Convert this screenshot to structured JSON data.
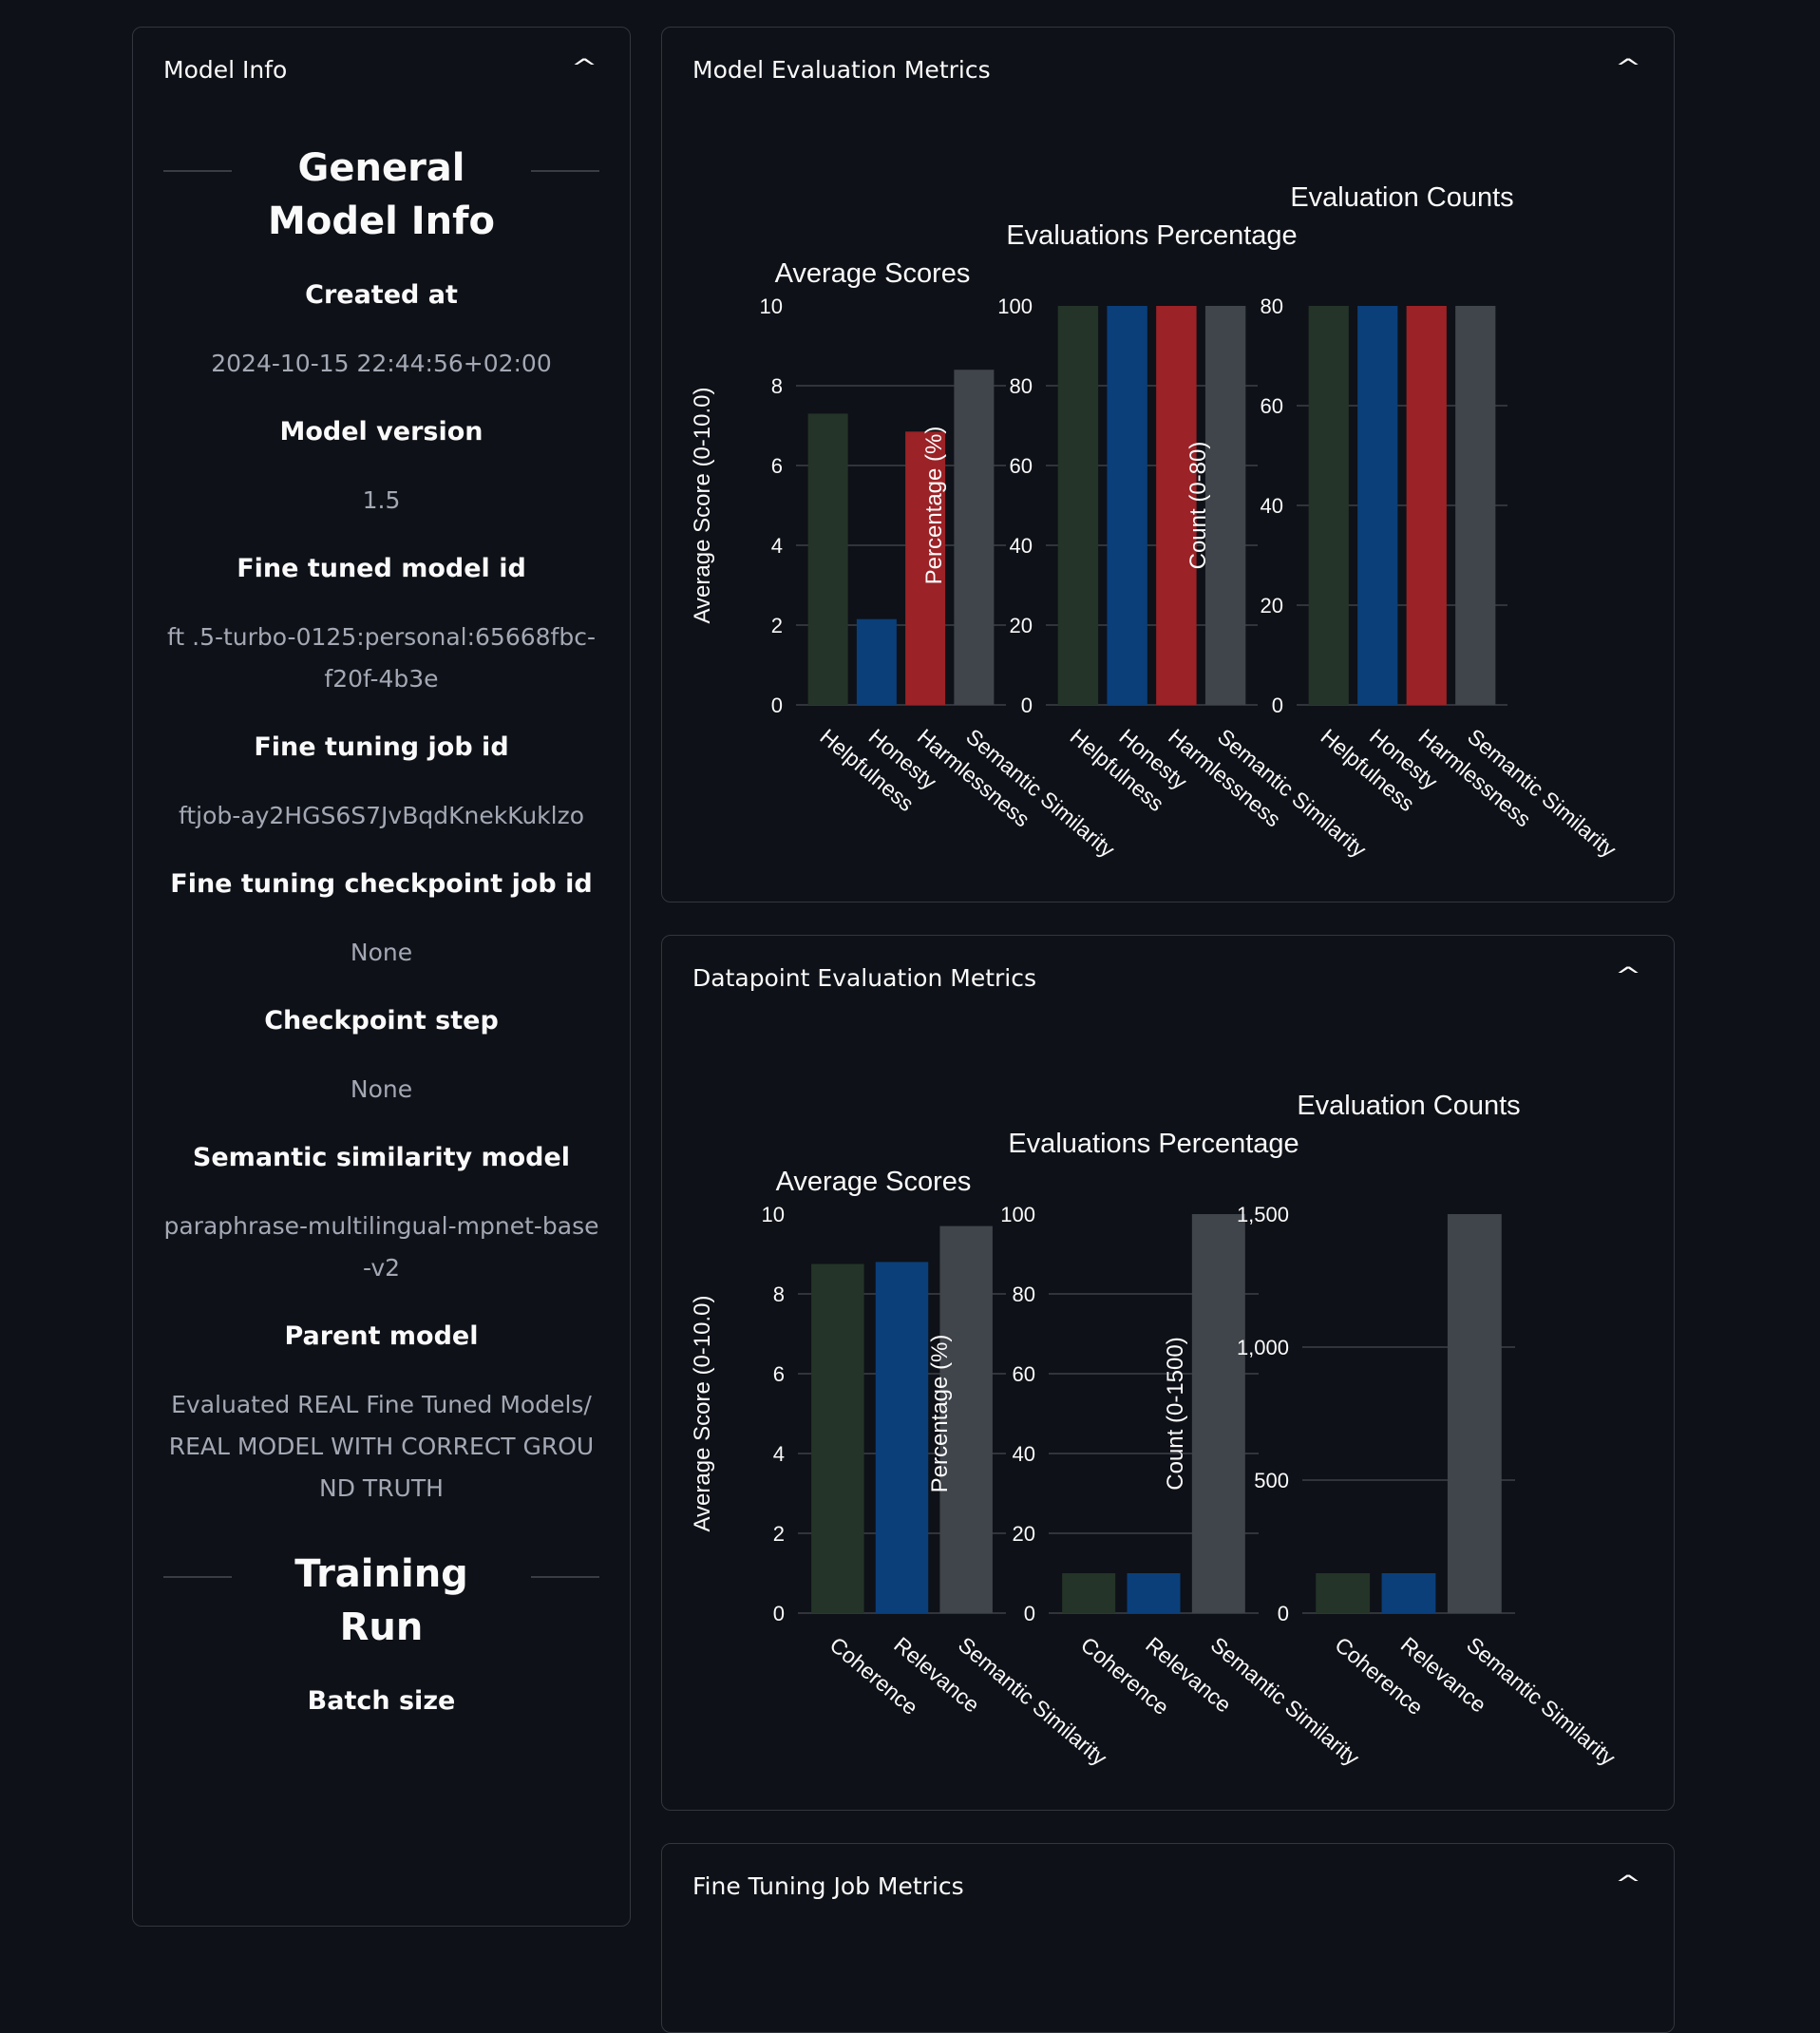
{
  "model_info": {
    "header": "Model Info",
    "section1": "General Model Info",
    "fields": [
      {
        "label": "Created at",
        "value": "2024-10-15 22:44:56+02:00"
      },
      {
        "label": "Model version",
        "value": "1.5"
      },
      {
        "label": "Fine tuned model id",
        "value": "ft .5-turbo-0125:personal:65668fbc-f20f-4b3e"
      },
      {
        "label": "Fine tuning job id",
        "value": "ftjob-ay2HGS6S7JvBqdKnekKuklzo"
      },
      {
        "label": "Fine tuning checkpoint job id",
        "value": "None"
      },
      {
        "label": "Checkpoint step",
        "value": "None"
      },
      {
        "label": "Semantic similarity model",
        "value": "paraphrase-multilingual-mpnet-base-v2"
      },
      {
        "label": "Parent model",
        "value": "Evaluated REAL Fine Tuned Models/REAL MODEL WITH CORRECT GROUND TRUTH"
      }
    ],
    "section2": "Training Run",
    "field_batch": "Batch size"
  },
  "panels": {
    "model_eval": "Model Evaluation Metrics",
    "datapoint_eval": "Datapoint Evaluation Metrics",
    "fine_tuning": "Fine Tuning Job Metrics"
  },
  "colors": {
    "green": "#243428",
    "blue": "#0a3f7a",
    "red": "#9b2226",
    "gray": "#40444b"
  },
  "chart_data": [
    {
      "type": "bar",
      "panel": "Model Evaluation Metrics",
      "categories": [
        "Helpfulness",
        "Honesty",
        "Harmlessness",
        "Semantic Similarity"
      ],
      "subplots": [
        {
          "title": "Average Scores",
          "ylabel": "Average Score (0-10.0)",
          "ylim": [
            0,
            10
          ],
          "ticks": [
            0,
            2,
            4,
            6,
            8,
            10
          ],
          "values": [
            7.3,
            2.15,
            6.85,
            8.4
          ]
        },
        {
          "title": "Evaluations Percentage",
          "ylabel": "Percentage (%)",
          "ylim": [
            0,
            100
          ],
          "ticks": [
            0,
            20,
            40,
            60,
            80,
            100
          ],
          "values": [
            100,
            100,
            100,
            100
          ]
        },
        {
          "title": "Evaluation Counts",
          "ylabel": "Count (0-80)",
          "ylim": [
            0,
            80
          ],
          "ticks": [
            0,
            20,
            40,
            60,
            80
          ],
          "values": [
            80,
            80,
            80,
            80
          ]
        }
      ]
    },
    {
      "type": "bar",
      "panel": "Datapoint Evaluation Metrics",
      "categories": [
        "Coherence",
        "Relevance",
        "Semantic Similarity"
      ],
      "subplots": [
        {
          "title": "Average Scores",
          "ylabel": "Average Score (0-10.0)",
          "ylim": [
            0,
            10
          ],
          "ticks": [
            0,
            2,
            4,
            6,
            8,
            10
          ],
          "values": [
            8.75,
            8.8,
            9.7
          ]
        },
        {
          "title": "Evaluations Percentage",
          "ylabel": "Percentage (%)",
          "ylim": [
            0,
            100
          ],
          "ticks": [
            0,
            20,
            40,
            60,
            80,
            100
          ],
          "values": [
            10,
            10,
            100
          ]
        },
        {
          "title": "Evaluation Counts",
          "ylabel": "Count (0-1500)",
          "ylim": [
            0,
            1500
          ],
          "ticks": [
            0,
            500,
            1000,
            1500
          ],
          "tick_labels": [
            "0",
            "500",
            "1,000",
            "1,500"
          ],
          "values": [
            150,
            150,
            1500
          ]
        }
      ]
    }
  ]
}
